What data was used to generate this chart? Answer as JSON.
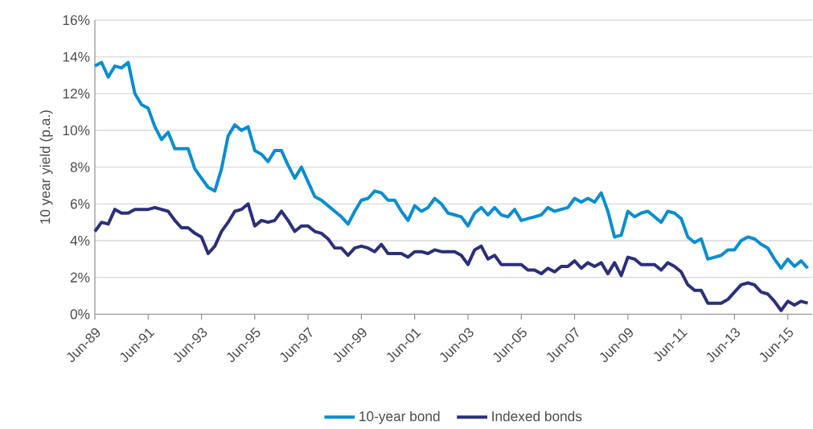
{
  "chart_data": {
    "type": "line",
    "ylabel": "10 year yield (p.a.)",
    "x": [
      "1989-06",
      "1989-09",
      "1989-12",
      "1990-03",
      "1990-06",
      "1990-09",
      "1990-12",
      "1991-03",
      "1991-06",
      "1991-09",
      "1991-12",
      "1992-03",
      "1992-06",
      "1992-09",
      "1992-12",
      "1993-03",
      "1993-06",
      "1993-09",
      "1993-12",
      "1994-03",
      "1994-06",
      "1994-09",
      "1994-12",
      "1995-03",
      "1995-06",
      "1995-09",
      "1995-12",
      "1996-03",
      "1996-06",
      "1996-09",
      "1996-12",
      "1997-03",
      "1997-06",
      "1997-09",
      "1997-12",
      "1998-03",
      "1998-06",
      "1998-09",
      "1998-12",
      "1999-03",
      "1999-06",
      "1999-09",
      "1999-12",
      "2000-03",
      "2000-06",
      "2000-09",
      "2000-12",
      "2001-03",
      "2001-06",
      "2001-09",
      "2001-12",
      "2002-03",
      "2002-06",
      "2002-09",
      "2002-12",
      "2003-03",
      "2003-06",
      "2003-09",
      "2003-12",
      "2004-03",
      "2004-06",
      "2004-09",
      "2004-12",
      "2005-03",
      "2005-06",
      "2005-09",
      "2005-12",
      "2006-03",
      "2006-06",
      "2006-09",
      "2006-12",
      "2007-03",
      "2007-06",
      "2007-09",
      "2007-12",
      "2008-03",
      "2008-06",
      "2008-09",
      "2008-12",
      "2009-03",
      "2009-06",
      "2009-09",
      "2009-12",
      "2010-03",
      "2010-06",
      "2010-09",
      "2010-12",
      "2011-03",
      "2011-06",
      "2011-09",
      "2011-12",
      "2012-03",
      "2012-06",
      "2012-09",
      "2012-12",
      "2013-03",
      "2013-06",
      "2013-09",
      "2013-12",
      "2014-03",
      "2014-06",
      "2014-09",
      "2014-12",
      "2015-03",
      "2015-06",
      "2015-09",
      "2015-12",
      "2016-03"
    ],
    "series": [
      {
        "name": "10-year bond",
        "color": "#0a8dce",
        "values": [
          13.5,
          13.7,
          12.9,
          13.5,
          13.4,
          13.7,
          12.0,
          11.4,
          11.2,
          10.2,
          9.5,
          9.9,
          9.0,
          9.0,
          9.0,
          7.9,
          7.4,
          6.9,
          6.7,
          7.9,
          9.7,
          10.3,
          10.0,
          10.2,
          8.9,
          8.7,
          8.3,
          8.9,
          8.9,
          8.1,
          7.4,
          8.0,
          7.2,
          6.4,
          6.2,
          5.9,
          5.6,
          5.3,
          4.9,
          5.6,
          6.2,
          6.3,
          6.7,
          6.6,
          6.2,
          6.2,
          5.6,
          5.1,
          5.9,
          5.6,
          5.8,
          6.3,
          6.0,
          5.5,
          5.4,
          5.3,
          4.8,
          5.5,
          5.8,
          5.4,
          5.8,
          5.4,
          5.3,
          5.7,
          5.1,
          5.2,
          5.3,
          5.4,
          5.8,
          5.6,
          5.7,
          5.8,
          6.3,
          6.1,
          6.3,
          6.1,
          6.6,
          5.6,
          4.2,
          4.3,
          5.6,
          5.3,
          5.5,
          5.6,
          5.3,
          5.0,
          5.6,
          5.5,
          5.2,
          4.2,
          3.9,
          4.1,
          3.0,
          3.1,
          3.2,
          3.5,
          3.5,
          4.0,
          4.2,
          4.1,
          3.8,
          3.6,
          3.0,
          2.5,
          3.0,
          2.6,
          2.9,
          2.5
        ]
      },
      {
        "name": "Indexed bonds",
        "color": "#2b3077",
        "values": [
          4.5,
          5.0,
          4.9,
          5.7,
          5.5,
          5.5,
          5.7,
          5.7,
          5.7,
          5.8,
          5.7,
          5.6,
          5.1,
          4.7,
          4.7,
          4.4,
          4.2,
          3.3,
          3.7,
          4.5,
          5.0,
          5.6,
          5.7,
          6.0,
          4.8,
          5.1,
          5.0,
          5.1,
          5.6,
          5.1,
          4.5,
          4.8,
          4.8,
          4.5,
          4.4,
          4.1,
          3.6,
          3.6,
          3.2,
          3.6,
          3.7,
          3.6,
          3.4,
          3.8,
          3.3,
          3.3,
          3.3,
          3.1,
          3.4,
          3.4,
          3.3,
          3.5,
          3.4,
          3.4,
          3.4,
          3.2,
          2.7,
          3.5,
          3.7,
          3.0,
          3.2,
          2.7,
          2.7,
          2.7,
          2.7,
          2.4,
          2.4,
          2.2,
          2.5,
          2.3,
          2.6,
          2.6,
          2.9,
          2.5,
          2.8,
          2.6,
          2.8,
          2.2,
          2.8,
          2.1,
          3.1,
          3.0,
          2.7,
          2.7,
          2.7,
          2.4,
          2.8,
          2.6,
          2.3,
          1.6,
          1.3,
          1.3,
          0.6,
          0.6,
          0.6,
          0.8,
          1.2,
          1.6,
          1.7,
          1.6,
          1.2,
          1.1,
          0.7,
          0.2,
          0.7,
          0.5,
          0.7,
          0.6
        ]
      }
    ],
    "xlim": [
      "1989-06",
      "2016-05"
    ],
    "xticks": [
      {
        "value": "1989-06",
        "label": "Jun-89"
      },
      {
        "value": "1991-06",
        "label": "Jun-91"
      },
      {
        "value": "1993-06",
        "label": "Jun-93"
      },
      {
        "value": "1995-06",
        "label": "Jun-95"
      },
      {
        "value": "1997-06",
        "label": "Jun-97"
      },
      {
        "value": "1999-06",
        "label": "Jun-99"
      },
      {
        "value": "2001-06",
        "label": "Jun-01"
      },
      {
        "value": "2003-06",
        "label": "Jun-03"
      },
      {
        "value": "2005-06",
        "label": "Jun-05"
      },
      {
        "value": "2007-06",
        "label": "Jun-07"
      },
      {
        "value": "2009-06",
        "label": "Jun-09"
      },
      {
        "value": "2011-06",
        "label": "Jun-11"
      },
      {
        "value": "2013-06",
        "label": "Jun-13"
      },
      {
        "value": "2015-06",
        "label": "Jun-15"
      }
    ],
    "ylim": [
      0,
      16
    ],
    "yticks": [
      {
        "value": 0,
        "label": "0%"
      },
      {
        "value": 2,
        "label": "2%"
      },
      {
        "value": 4,
        "label": "4%"
      },
      {
        "value": 6,
        "label": "6%"
      },
      {
        "value": 8,
        "label": "8%"
      },
      {
        "value": 10,
        "label": "10%"
      },
      {
        "value": 12,
        "label": "12%"
      },
      {
        "value": 14,
        "label": "14%"
      },
      {
        "value": 16,
        "label": "16%"
      }
    ],
    "grid": "y",
    "legend": "bottom",
    "marker": "none",
    "line_style": "solid"
  }
}
